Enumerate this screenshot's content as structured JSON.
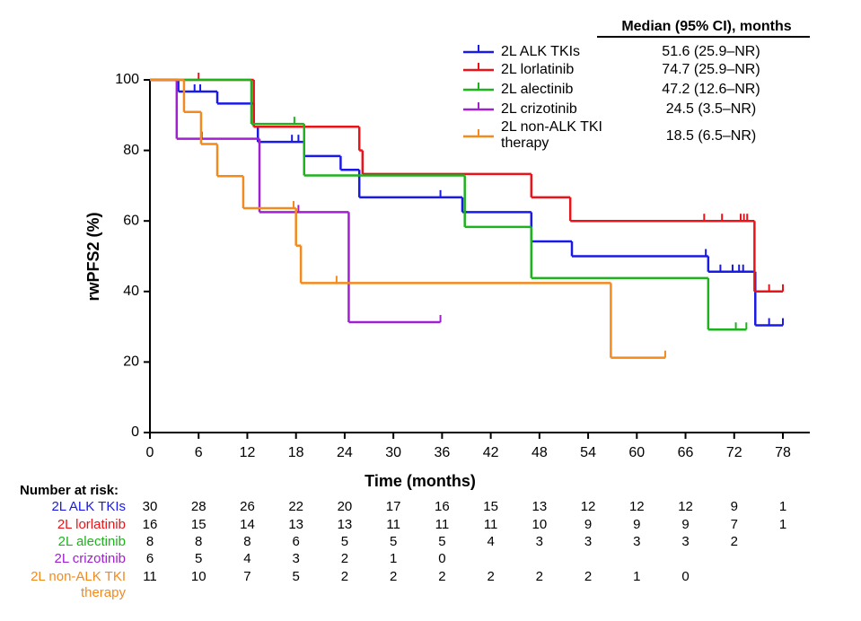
{
  "chart_data": {
    "type": "km",
    "xlabel": "Time (months)",
    "ylabel": "rwPFS2 (%)",
    "xlim": [
      0,
      78
    ],
    "ylim": [
      0,
      100
    ],
    "xticks": [
      0,
      6,
      12,
      18,
      24,
      30,
      36,
      42,
      48,
      54,
      60,
      66,
      72,
      78
    ],
    "yticks": [
      0,
      20,
      40,
      60,
      80,
      100
    ],
    "median_header": "Median (95% CI), months",
    "series": [
      {
        "name": "2L ALK TKIs",
        "color": "#1a1ae6",
        "median": "51.6 (25.9–NR)",
        "x": [
          0,
          3.5,
          8.3,
          12.8,
          13.3,
          19,
          23.5,
          25.8,
          38.5,
          47,
          52,
          68.8,
          74.6,
          78
        ],
        "values": [
          100,
          96.7,
          93.3,
          86.7,
          82.4,
          78.4,
          74.5,
          66.7,
          62.5,
          54.2,
          50,
          45.6,
          30.4,
          30.4
        ],
        "censor_x": [
          5.5,
          6.2,
          17.5,
          18.3,
          35.8,
          68.5,
          70.3,
          71.8,
          72.6,
          73.1,
          76.3,
          78
        ],
        "censor_values": [
          96.7,
          96.7,
          82.4,
          82.4,
          66.7,
          50,
          45.6,
          45.6,
          45.6,
          45.6,
          30.4,
          30.4
        ],
        "at_risk": [
          30,
          28,
          26,
          22,
          20,
          17,
          16,
          15,
          13,
          12,
          12,
          12,
          9,
          1
        ]
      },
      {
        "name": "2L lorlatinib",
        "color": "#e8141a",
        "median": "74.7 (25.9–NR)",
        "x": [
          0,
          12.8,
          25.8,
          26.2,
          47,
          51.8,
          74.5,
          78
        ],
        "values": [
          100,
          86.7,
          80,
          73.3,
          66.7,
          60,
          40,
          40
        ],
        "censor_x": [
          6,
          68.3,
          70.5,
          72.8,
          73.2,
          73.6,
          76.3,
          78
        ],
        "censor_values": [
          100,
          60,
          60,
          60,
          60,
          60,
          40,
          40
        ],
        "at_risk": [
          16,
          15,
          14,
          13,
          13,
          11,
          11,
          11,
          10,
          9,
          9,
          9,
          7,
          1
        ]
      },
      {
        "name": "2L alectinib",
        "color": "#1db31d",
        "median": "47.2 (12.6–NR)",
        "x": [
          0,
          12.5,
          19,
          38.8,
          47,
          68.8,
          73.5
        ],
        "values": [
          100,
          87.5,
          72.9,
          58.3,
          43.8,
          29.2,
          29.2
        ],
        "censor_x": [
          17.8,
          72.2,
          73.5
        ],
        "censor_values": [
          87.5,
          29.2,
          29.2
        ],
        "at_risk": [
          8,
          8,
          8,
          6,
          5,
          5,
          5,
          4,
          3,
          3,
          3,
          3,
          2,
          null
        ]
      },
      {
        "name": "2L crizotinib",
        "color": "#a020d0",
        "median": "24.5 (3.5–NR)",
        "x": [
          0,
          3.3,
          13.5,
          24.5,
          35.8
        ],
        "values": [
          100,
          83.3,
          62.5,
          31.3,
          31.3
        ],
        "censor_x": [
          6.4,
          18.3,
          35.8
        ],
        "censor_values": [
          83.3,
          62.5,
          31.3
        ],
        "at_risk": [
          6,
          5,
          4,
          3,
          2,
          1,
          0,
          null,
          null,
          null,
          null,
          null,
          null,
          null
        ]
      },
      {
        "name": "2L non-ALK TKI therapy",
        "color": "#f28a1e",
        "median": "18.5 (6.5–NR)",
        "x": [
          0,
          4.2,
          6.3,
          8.3,
          11.5,
          18,
          18.6,
          56.8,
          63.5
        ],
        "values": [
          100,
          90.9,
          81.8,
          72.7,
          63.6,
          53,
          42.4,
          21.2,
          21.2
        ],
        "censor_x": [
          17.7,
          23,
          63.5
        ],
        "censor_values": [
          63.6,
          42.4,
          21.2
        ],
        "at_risk": [
          11,
          10,
          7,
          5,
          2,
          2,
          2,
          2,
          2,
          2,
          1,
          0,
          null,
          null
        ]
      }
    ],
    "risk_title": "Number at risk:"
  }
}
